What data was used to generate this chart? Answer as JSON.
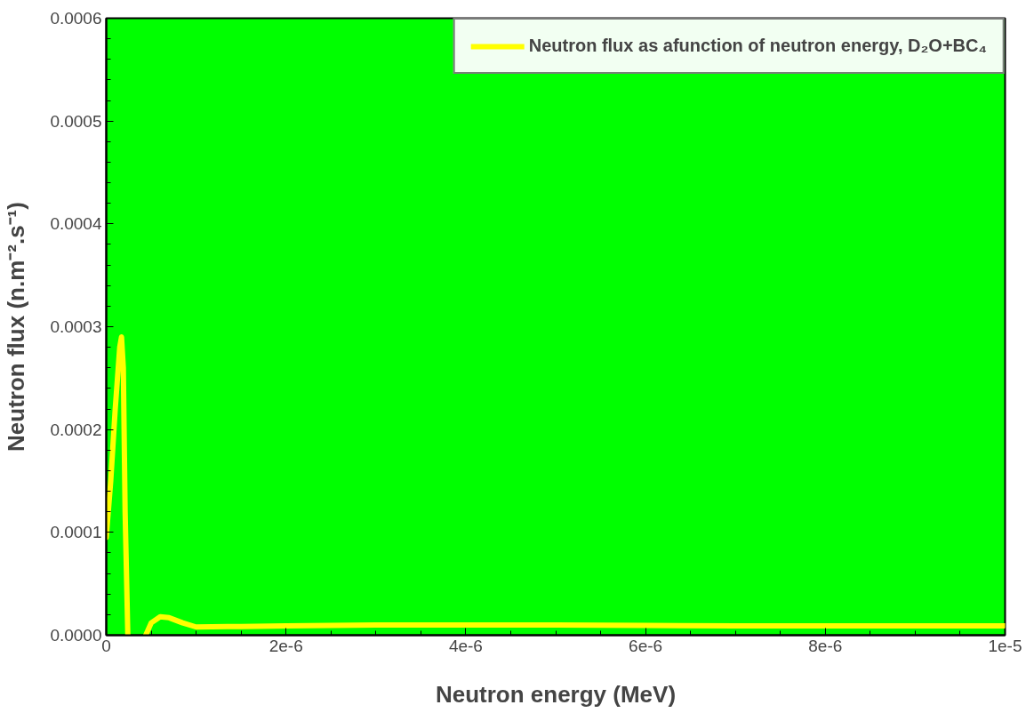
{
  "chart_data": {
    "type": "line",
    "xlabel": "Neutron energy (MeV)",
    "ylabel": "Neutron flux (n.m⁻².s⁻¹)",
    "x": [
      0,
      5e-08,
      1e-07,
      1.5e-07,
      1.7e-07,
      1.9e-07,
      2.1e-07,
      2.4e-07,
      3.4e-07,
      4.4e-07,
      5e-07,
      6e-07,
      7e-07,
      8.5e-07,
      1e-06,
      1.5e-06,
      2e-06,
      3e-06,
      4e-06,
      5e-06,
      6e-06,
      7e-06,
      8e-06,
      9e-06,
      1e-05
    ],
    "series": [
      {
        "name": "Neutron flux as afunction of neutron energy, D₂O+BC₄",
        "color": "#ffff00",
        "values": [
          9.5e-05,
          0.00015,
          0.00022,
          0.00028,
          0.00029,
          0.00026,
          0.00012,
          0,
          null,
          0,
          1.2e-05,
          1.8e-05,
          1.7e-05,
          1.2e-05,
          8e-06,
          8.5e-06,
          9e-06,
          1e-05,
          1e-05,
          1e-05,
          9.5e-06,
          9e-06,
          9e-06,
          9e-06,
          9e-06
        ]
      }
    ],
    "xlim": [
      0,
      1e-05
    ],
    "xticks": [
      0,
      {
        "value": 2e-06,
        "label": "2e-6"
      },
      {
        "value": 4e-06,
        "label": "4e-6"
      },
      {
        "value": 6e-06,
        "label": "6e-6"
      },
      {
        "value": 8e-06,
        "label": "8e-6"
      },
      {
        "value": 1e-05,
        "label": "1e-5"
      }
    ],
    "ylim": [
      0,
      0.0006
    ],
    "yticks": [
      {
        "value": 0,
        "label": "0.0000"
      },
      0.0001,
      0.0002,
      0.0003,
      0.0004,
      0.0005,
      0.0006
    ],
    "grid": false,
    "legend": "top right",
    "marker": "none",
    "line_style": "solid"
  }
}
